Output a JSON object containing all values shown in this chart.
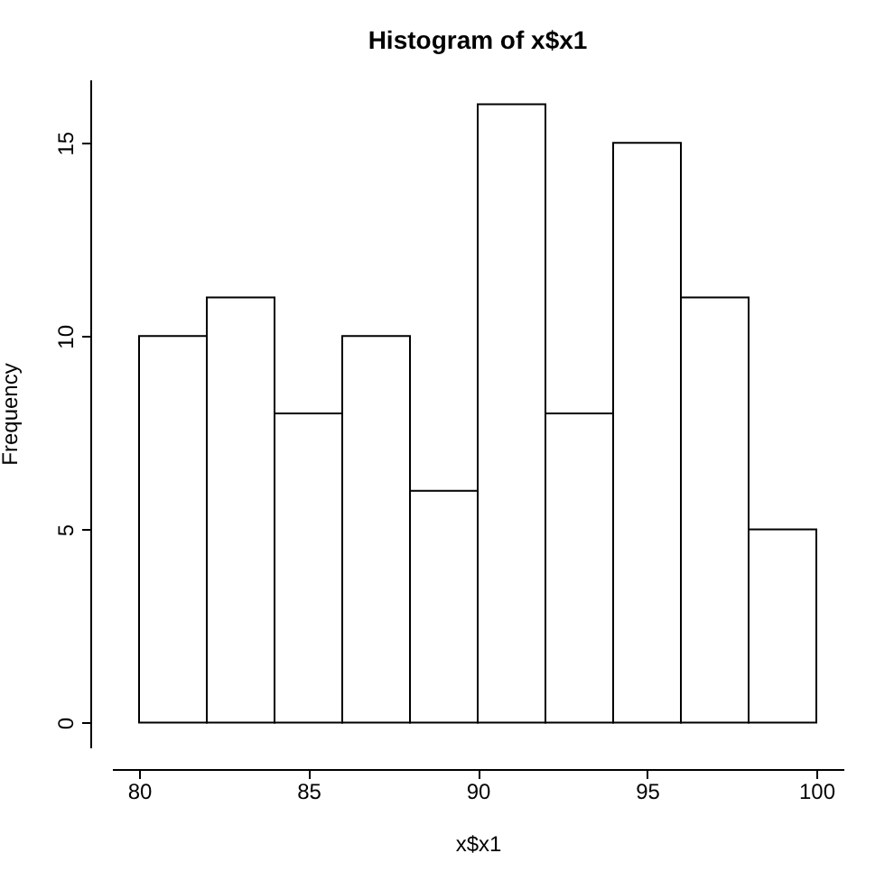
{
  "chart_data": {
    "type": "histogram",
    "title": "Histogram of x$x1",
    "xlabel": "x$x1",
    "ylabel": "Frequency",
    "bins": [
      80,
      82,
      84,
      86,
      88,
      90,
      92,
      94,
      96,
      98,
      100
    ],
    "values": [
      10,
      11,
      8,
      10,
      6,
      16,
      8,
      15,
      11,
      5
    ],
    "color": "#ffffff",
    "xlim": [
      79.2,
      100.8
    ],
    "xticks": [
      80,
      85,
      90,
      95,
      100
    ],
    "ylim": [
      -0.64,
      16.64
    ],
    "yticks": [
      0,
      5,
      10,
      15
    ],
    "grid": false
  }
}
